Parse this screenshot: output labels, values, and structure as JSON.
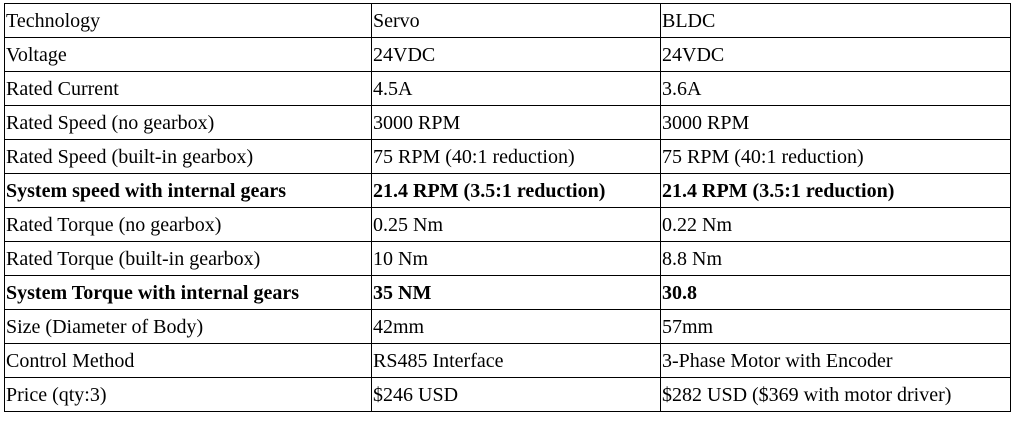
{
  "table": {
    "rows": [
      {
        "cells": [
          "Technology",
          "Servo",
          "BLDC"
        ],
        "bold": false
      },
      {
        "cells": [
          "Voltage",
          "24VDC",
          "24VDC"
        ],
        "bold": false
      },
      {
        "cells": [
          "Rated Current",
          "4.5A",
          "3.6A"
        ],
        "bold": false
      },
      {
        "cells": [
          "Rated Speed (no gearbox)",
          "3000 RPM",
          "3000 RPM"
        ],
        "bold": false
      },
      {
        "cells": [
          "Rated Speed  (built-in gearbox)",
          "75 RPM (40:1 reduction)",
          "75 RPM (40:1 reduction)"
        ],
        "bold": false
      },
      {
        "cells": [
          "System speed with internal gears",
          "21.4 RPM (3.5:1 reduction)",
          "21.4 RPM (3.5:1 reduction)"
        ],
        "bold": true
      },
      {
        "cells": [
          "Rated Torque (no gearbox)",
          "0.25 Nm",
          "0.22 Nm"
        ],
        "bold": false
      },
      {
        "cells": [
          "Rated Torque (built-in gearbox)",
          "10 Nm",
          "8.8 Nm"
        ],
        "bold": false
      },
      {
        "cells": [
          "System Torque with internal gears",
          "35 NM",
          "30.8"
        ],
        "bold": true
      },
      {
        "cells": [
          "Size (Diameter of Body)",
          "42mm",
          "57mm"
        ],
        "bold": false
      },
      {
        "cells": [
          "Control Method",
          "RS485 Interface",
          "3-Phase Motor with Encoder"
        ],
        "bold": false
      },
      {
        "cells": [
          "Price (qty:3)",
          "$246 USD",
          "$282 USD ($369 with motor driver)"
        ],
        "bold": false
      }
    ]
  }
}
